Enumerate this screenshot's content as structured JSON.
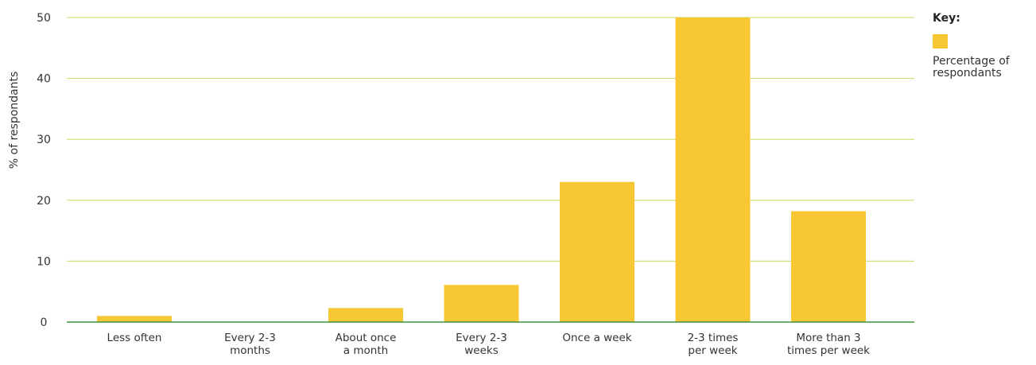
{
  "chart_data": {
    "type": "bar",
    "title": "",
    "xlabel": "",
    "ylabel": "% of respondants",
    "categories": [
      [
        "Less often"
      ],
      [
        "Every 2-3",
        "months"
      ],
      [
        "About once",
        "a month"
      ],
      [
        "Every 2-3",
        "weeks"
      ],
      [
        "Once a week"
      ],
      [
        "2-3 times",
        "per week"
      ],
      [
        "More than 3",
        "times per week"
      ]
    ],
    "series": [
      {
        "name": "Percentage of respondants",
        "color": "#F8C834",
        "values": [
          1,
          0,
          2.3,
          6.1,
          23,
          50,
          18.2
        ]
      }
    ],
    "ylim": [
      0,
      50
    ],
    "yticks": [
      0,
      10,
      20,
      30,
      40,
      50
    ],
    "grid": true,
    "grid_color": "#C8DB5B",
    "axis_color": "#3F8F3F",
    "legend": {
      "position": "right",
      "title": "Key:",
      "label_lines": [
        "Percentage of",
        "respondants"
      ]
    }
  }
}
